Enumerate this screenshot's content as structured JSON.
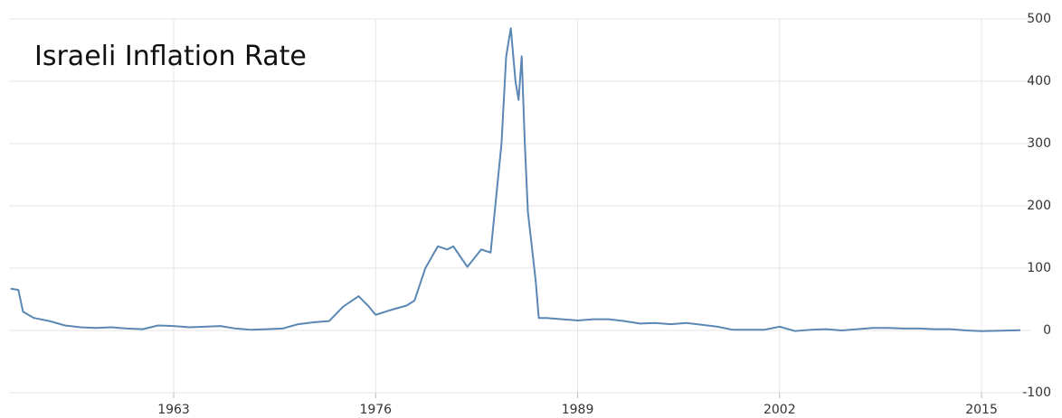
{
  "chart_data": {
    "type": "line",
    "title": "Israeli Inflation Rate",
    "x": [
      1952.5,
      1953,
      1953.3,
      1954,
      1955,
      1956,
      1957,
      1958,
      1959,
      1960,
      1961,
      1962,
      1963,
      1964,
      1965,
      1966,
      1967,
      1968,
      1969,
      1970,
      1971,
      1972,
      1973,
      1973.9,
      1974.9,
      1975.5,
      1976,
      1977,
      1978,
      1978.5,
      1979.2,
      1980,
      1980.6,
      1981,
      1981.9,
      1982.8,
      1983.4,
      1983.7,
      1984.1,
      1984.4,
      1984.7,
      1985,
      1985.2,
      1985.4,
      1985.6,
      1985.8,
      1986.3,
      1986.5,
      1987,
      1988,
      1989,
      1990,
      1991,
      1992,
      1993,
      1994,
      1995,
      1996,
      1997,
      1998,
      1999,
      2000,
      2001,
      2002,
      2003,
      2004,
      2005,
      2006,
      2007,
      2008,
      2009,
      2010,
      2011,
      2012,
      2013,
      2014,
      2015,
      2016,
      2017.5
    ],
    "series": [
      {
        "name": "Inflation Rate",
        "color": "#5b87b5",
        "values": [
          67,
          65,
          30,
          20,
          15,
          8,
          5,
          4,
          5,
          3,
          2,
          8,
          7,
          5,
          6,
          7,
          3,
          1,
          2,
          3,
          10,
          13,
          15,
          38,
          55,
          40,
          25,
          33,
          40,
          48,
          100,
          135,
          130,
          135,
          102,
          130,
          125,
          200,
          300,
          440,
          485,
          400,
          370,
          440,
          300,
          190,
          80,
          20,
          20,
          18,
          16,
          18,
          18,
          15,
          11,
          12,
          10,
          12,
          9,
          6,
          1,
          1,
          1,
          6,
          -1,
          1,
          2,
          0,
          2,
          4,
          4,
          3,
          3,
          2,
          2,
          0,
          -1,
          -0.5,
          0.3
        ]
      }
    ],
    "xlim": [
      1952.4,
      2018.2
    ],
    "ylim": [
      -100,
      500
    ],
    "xticks": [
      1963,
      1976,
      1989,
      2002,
      2015
    ],
    "yticks": [
      -100,
      0,
      100,
      200,
      300,
      400,
      500
    ],
    "grid": true
  }
}
